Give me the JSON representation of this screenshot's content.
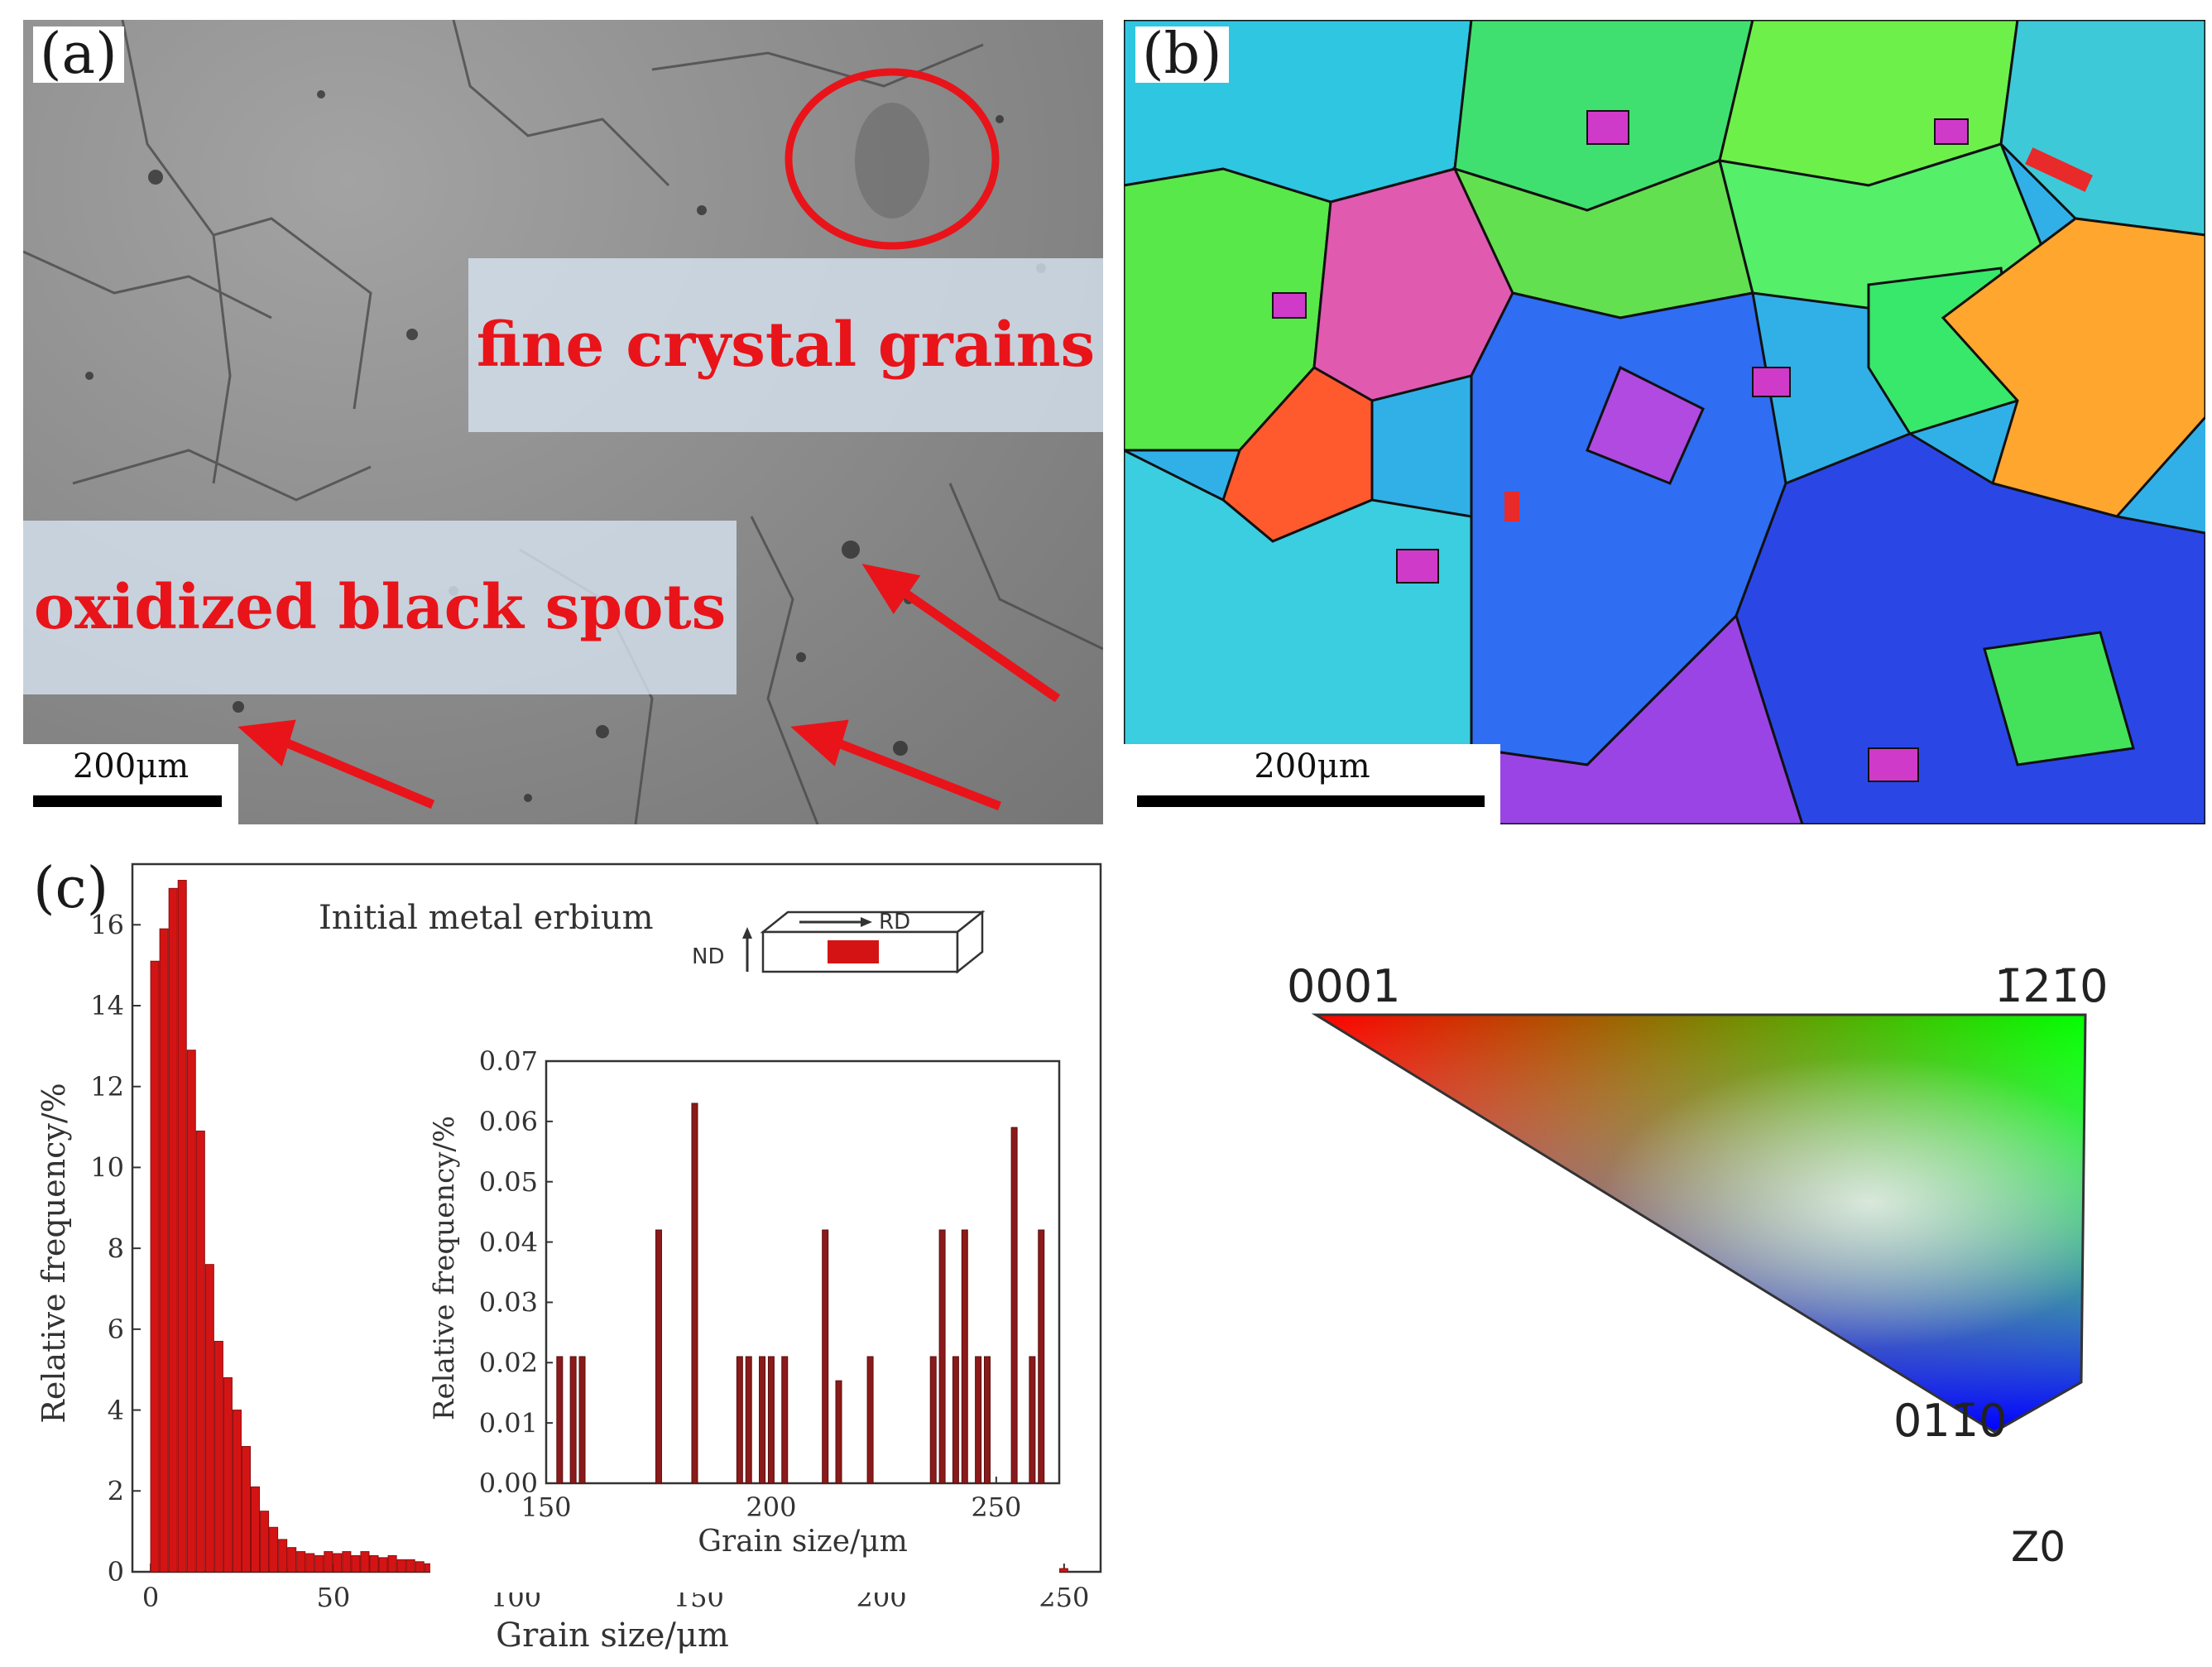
{
  "panels": {
    "a": {
      "label": "(a)",
      "callout_top": "fine crystal grains",
      "callout_bottom": "oxidized black spots",
      "scale": "200μm"
    },
    "b": {
      "label": "(b)",
      "scale": "200μm"
    },
    "c": {
      "label": "(c)",
      "subtitle": "Initial metal erbium",
      "schematic_rd": "RD",
      "schematic_nd": "ND"
    },
    "legend": {
      "corner_top_left": "0001",
      "corner_top_right": "1̄21̄0",
      "corner_bottom": "011̄0",
      "direction": "Z0",
      "colors": [
        "#ff0000",
        "#00ff00",
        "#0000ff"
      ]
    }
  },
  "chart_data": [
    {
      "id": "main",
      "type": "bar",
      "xlabel": "Grain size/μm",
      "ylabel": "Relative frequency/%",
      "xlim": [
        -5,
        260
      ],
      "ylim": [
        0,
        17.5
      ],
      "xticks": [
        0,
        50,
        100,
        150,
        200,
        250
      ],
      "yticks": [
        0,
        2,
        4,
        6,
        8,
        10,
        12,
        14,
        16
      ],
      "bin_width": 2.5,
      "color": "#d41414",
      "x": [
        1.25,
        3.75,
        6.25,
        8.75,
        11.25,
        13.75,
        16.25,
        18.75,
        21.25,
        23.75,
        26.25,
        28.75,
        31.25,
        33.75,
        36.25,
        38.75,
        41.25,
        43.75,
        46.25,
        48.75,
        51.25,
        53.75,
        56.25,
        58.75,
        61.25,
        63.75,
        66.25,
        68.75,
        71.25,
        73.75,
        76.25,
        78.75,
        81.25,
        250.0
      ],
      "values": [
        15.1,
        15.9,
        16.9,
        17.1,
        12.9,
        10.9,
        7.6,
        5.7,
        4.8,
        4.0,
        3.1,
        2.1,
        1.5,
        1.1,
        0.8,
        0.6,
        0.5,
        0.45,
        0.4,
        0.5,
        0.45,
        0.5,
        0.4,
        0.5,
        0.4,
        0.35,
        0.4,
        0.3,
        0.3,
        0.25,
        0.2,
        0.15,
        0.1,
        0.08
      ]
    },
    {
      "id": "inset",
      "type": "bar",
      "xlabel": "Grain size/μm",
      "ylabel": "Relative frequency/%",
      "xlim": [
        150,
        264
      ],
      "ylim": [
        0,
        0.07
      ],
      "xticks": [
        150,
        200,
        250
      ],
      "yticks": [
        0.0,
        0.01,
        0.02,
        0.03,
        0.04,
        0.05,
        0.06,
        0.07
      ],
      "color": "#8b1a1a",
      "x": [
        153,
        156,
        158,
        175,
        183,
        193,
        195,
        198,
        200,
        203,
        212,
        215,
        222,
        236,
        238,
        241,
        243,
        246,
        248,
        254,
        258,
        260
      ],
      "values": [
        0.021,
        0.021,
        0.021,
        0.042,
        0.063,
        0.021,
        0.021,
        0.021,
        0.021,
        0.021,
        0.042,
        0.017,
        0.021,
        0.021,
        0.042,
        0.021,
        0.042,
        0.021,
        0.021,
        0.059,
        0.021,
        0.042
      ]
    }
  ]
}
